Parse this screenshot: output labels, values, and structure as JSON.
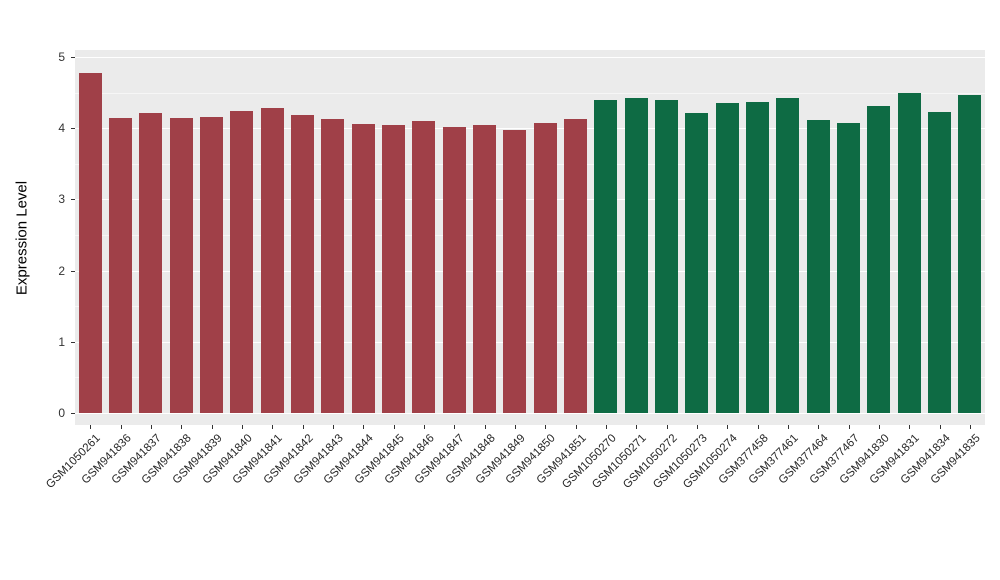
{
  "chart_data": {
    "type": "bar",
    "title": "",
    "xlabel": "",
    "ylabel": "Expression Level",
    "ylim": [
      0,
      5
    ],
    "yticks": [
      0,
      1,
      2,
      3,
      4,
      5
    ],
    "minor_ticks": [
      0.5,
      1.5,
      2.5,
      3.5,
      4.5
    ],
    "grid": "on",
    "legend": "none",
    "panel_background": "#EBEBEB",
    "gridline_color": "#FFFFFF",
    "group_split_index": 17,
    "group_colors": [
      "#A04048",
      "#0E6B44"
    ],
    "categories": [
      "GSM1050261",
      "GSM941836",
      "GSM941837",
      "GSM941838",
      "GSM941839",
      "GSM941840",
      "GSM941841",
      "GSM941842",
      "GSM941843",
      "GSM941844",
      "GSM941845",
      "GSM941846",
      "GSM941847",
      "GSM941848",
      "GSM941849",
      "GSM941850",
      "GSM941851",
      "GSM1050270",
      "GSM1050271",
      "GSM1050272",
      "GSM1050273",
      "GSM1050274",
      "GSM377458",
      "GSM377461",
      "GSM377464",
      "GSM377467",
      "GSM941830",
      "GSM941831",
      "GSM941834",
      "GSM941835"
    ],
    "values": [
      4.78,
      4.15,
      4.21,
      4.14,
      4.16,
      4.24,
      4.28,
      4.18,
      4.13,
      4.06,
      4.04,
      4.1,
      4.01,
      4.04,
      3.97,
      4.08,
      4.13,
      4.39,
      4.42,
      4.4,
      4.22,
      4.35,
      4.37,
      4.42,
      4.11,
      4.07,
      4.31,
      4.49,
      4.23,
      4.47
    ]
  }
}
